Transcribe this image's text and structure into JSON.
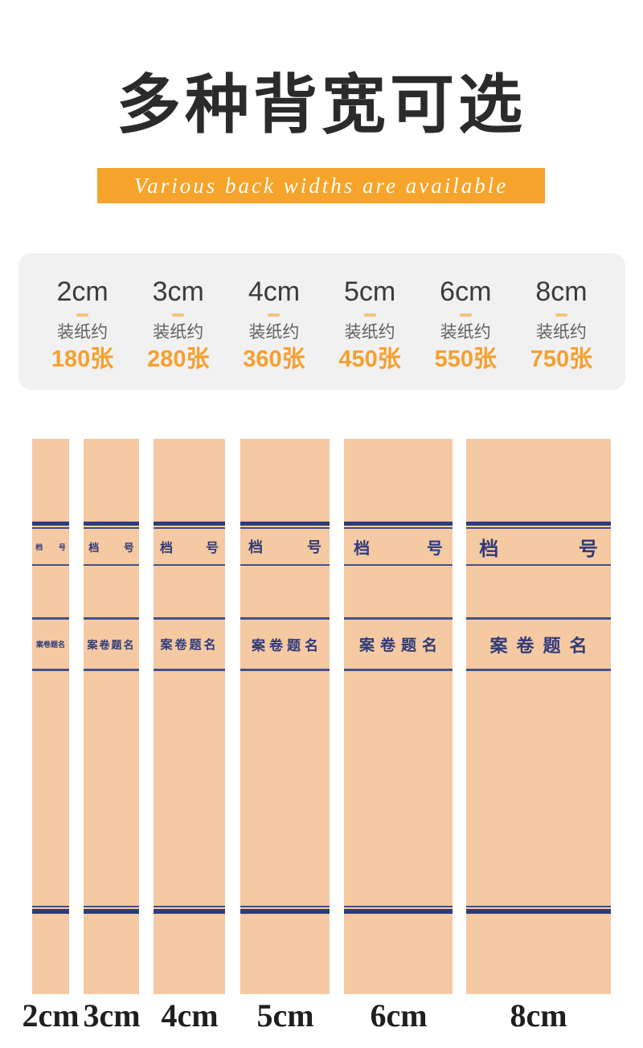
{
  "header": {
    "title": "多种背宽可选",
    "subtitle": "Various back widths are available"
  },
  "capacity_card": {
    "columns": [
      {
        "size": "2cm",
        "note": "装纸约",
        "capacity": "180张"
      },
      {
        "size": "3cm",
        "note": "装纸约",
        "capacity": "280张"
      },
      {
        "size": "4cm",
        "note": "装纸约",
        "capacity": "360张"
      },
      {
        "size": "5cm",
        "note": "装纸约",
        "capacity": "450张"
      },
      {
        "size": "6cm",
        "note": "装纸约",
        "capacity": "550张"
      },
      {
        "size": "8cm",
        "note": "装纸约",
        "capacity": "750张"
      }
    ]
  },
  "spine": {
    "file_no_left": "档",
    "file_no_right": "号",
    "title_label": "案卷题名",
    "widths": [
      "2cm",
      "3cm",
      "4cm",
      "5cm",
      "6cm",
      "8cm"
    ]
  },
  "colors": {
    "accent_orange": "#f6a42c",
    "capacity_orange": "#f5a02e",
    "kraft_paper": "#f5c9a2",
    "navy_rule": "#2b3c7a"
  }
}
